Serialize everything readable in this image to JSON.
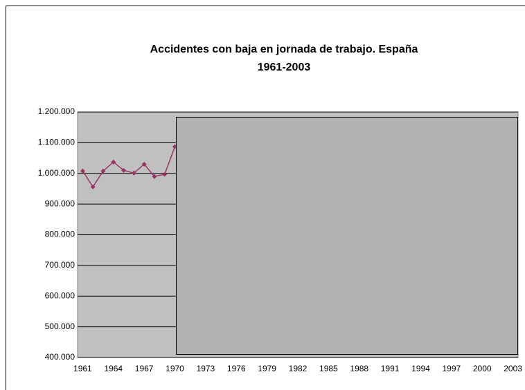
{
  "chart_data": {
    "type": "line",
    "title": "Accidentes con baja en jornada de trabajo.  España",
    "subtitle": "1961-2003",
    "categories": [
      "1961",
      null,
      null,
      "1964",
      null,
      null,
      "1967",
      null,
      null,
      "1970",
      null,
      null,
      "1973",
      null,
      null,
      "1976",
      null,
      null,
      "1979",
      null,
      null,
      "1982",
      null,
      null,
      "1985",
      null,
      null,
      "1988",
      null,
      null,
      "1991",
      null,
      null,
      "1994",
      null,
      null,
      "1997",
      null,
      null,
      "2000",
      null,
      null,
      "2003"
    ],
    "series": [
      {
        "name": "Accidentes",
        "color": "#993366",
        "values": [
          1008000,
          956000,
          1008000,
          1037000,
          1010000,
          1001000,
          1030000,
          990000,
          997000,
          1087000,
          null,
          null,
          null,
          null,
          null,
          null,
          null,
          null,
          null,
          null,
          null,
          null,
          null,
          null,
          null,
          null,
          null,
          null,
          null,
          null,
          null,
          null,
          null,
          null,
          null,
          null,
          null,
          null,
          null,
          null,
          null,
          null,
          null
        ]
      }
    ],
    "ylim": [
      400000,
      1200000
    ],
    "yticks": [
      {
        "value": 400000,
        "label": "400.000"
      },
      {
        "value": 500000,
        "label": "500.000"
      },
      {
        "value": 600000,
        "label": "600.000"
      },
      {
        "value": 700000,
        "label": "700.000"
      },
      {
        "value": 800000,
        "label": "800.000"
      },
      {
        "value": 900000,
        "label": "900.000"
      },
      {
        "value": 1000000,
        "label": "1.000.000"
      },
      {
        "value": 1100000,
        "label": "1.100.000"
      },
      {
        "value": 1200000,
        "label": "1.200.000"
      }
    ],
    "grid": true
  }
}
